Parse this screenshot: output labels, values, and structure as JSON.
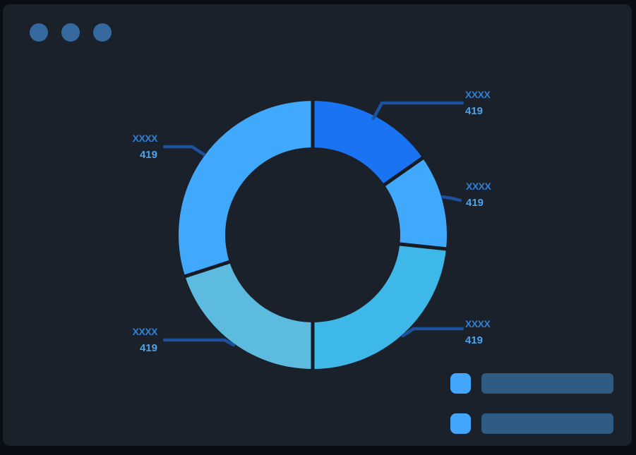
{
  "theme": {
    "frame_bg": "#0a0e14",
    "panel_bg": "#1a212b",
    "separator_color": "#161c25",
    "dot_color": "#36699e",
    "callout_line_color": "#1d519e",
    "name_color": "#3080d3",
    "value_color": "#4ba3ea",
    "legend_swatch_color": "#42a7fc",
    "legend_bar_color": "#2f5a81"
  },
  "chart_data": {
    "type": "pie",
    "subtype": "donut",
    "title": "",
    "direction": "clockwise",
    "start_angle_deg": 0,
    "hole": true,
    "segments": [
      {
        "name": "XXXX",
        "value": "419",
        "color": "#1a73f2",
        "arc_degrees": 55,
        "label_position": "top-right"
      },
      {
        "name": "XXXX",
        "value": "419",
        "color": "#41a9fc",
        "arc_degrees": 41,
        "label_position": "right"
      },
      {
        "name": "XXXX",
        "value": "419",
        "color": "#3eb8e8",
        "arc_degrees": 84,
        "label_position": "bottom-right"
      },
      {
        "name": "XXXX",
        "value": "419",
        "color": "#5dbbe0",
        "arc_degrees": 72,
        "label_position": "bottom-left"
      },
      {
        "name": "XXXX",
        "value": "419",
        "color": "#41a9fc",
        "arc_degrees": 108,
        "label_position": "left"
      }
    ]
  },
  "legend": {
    "items": [
      {
        "swatch_color": "#42a7fc",
        "bar_color": "#2f5a81",
        "label": ""
      },
      {
        "swatch_color": "#42a7fc",
        "bar_color": "#2f5a81",
        "label": ""
      }
    ]
  }
}
